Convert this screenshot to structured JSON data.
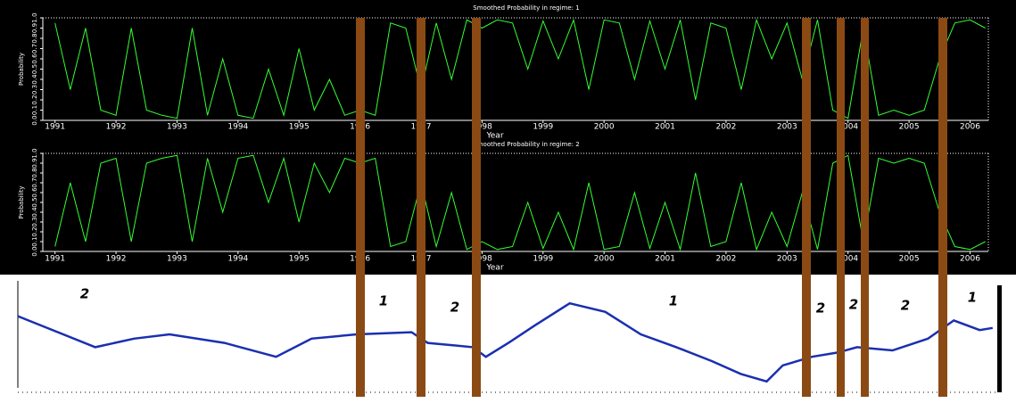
{
  "chart_data": [
    {
      "type": "line",
      "title": "Smoothed Probability in regime: 1",
      "x_label": "Year",
      "y_label": "Probability",
      "xlim": [
        1990.8,
        2006.3
      ],
      "xticks": [
        1991,
        1992,
        1993,
        1994,
        1995,
        1996,
        1997,
        1998,
        1999,
        2000,
        2001,
        2002,
        2003,
        2004,
        2005,
        2006
      ],
      "ylim": [
        0,
        1
      ],
      "yticks": [
        {
          "value": 0,
          "label": "0.0"
        },
        0.1,
        0.2,
        0.3,
        0.4,
        0.5,
        0.6,
        0.7,
        0.8,
        0.9,
        {
          "value": 1,
          "label": "1.0"
        }
      ],
      "background": "#000000",
      "x": [
        1991,
        1991.25,
        1991.5,
        1991.75,
        1992,
        1992.25,
        1992.5,
        1992.75,
        1993,
        1993.25,
        1993.5,
        1993.75,
        1994,
        1994.25,
        1994.5,
        1994.75,
        1995,
        1995.25,
        1995.5,
        1995.75,
        1996,
        1996.25,
        1996.5,
        1996.75,
        1997,
        1997.25,
        1997.5,
        1997.75,
        1998,
        1998.25,
        1998.5,
        1998.75,
        1999,
        1999.25,
        1999.5,
        1999.75,
        2000,
        2000.25,
        2000.5,
        2000.75,
        2001,
        2001.25,
        2001.5,
        2001.75,
        2002,
        2002.25,
        2002.5,
        2002.75,
        2003,
        2003.25,
        2003.5,
        2003.75,
        2004,
        2004.25,
        2004.5,
        2004.75,
        2005,
        2005.25,
        2005.5,
        2005.75,
        2006,
        2006.25
      ],
      "series": [
        {
          "color": "#33ff33",
          "values": [
            0.95,
            0.3,
            0.9,
            0.1,
            0.05,
            0.9,
            0.1,
            0.05,
            0.02,
            0.9,
            0.05,
            0.6,
            0.05,
            0.02,
            0.5,
            0.05,
            0.7,
            0.1,
            0.4,
            0.05,
            0.1,
            0.05,
            0.95,
            0.9,
            0.3,
            0.95,
            0.4,
            0.98,
            0.9,
            0.98,
            0.95,
            0.5,
            0.97,
            0.6,
            0.98,
            0.3,
            0.98,
            0.95,
            0.4,
            0.97,
            0.5,
            0.98,
            0.2,
            0.95,
            0.9,
            0.3,
            0.98,
            0.6,
            0.95,
            0.4,
            0.98,
            0.1,
            0.02,
            0.9,
            0.05,
            0.1,
            0.05,
            0.1,
            0.6,
            0.95,
            0.98,
            0.9
          ]
        }
      ]
    },
    {
      "type": "line",
      "title": "Smoothed Probability in regime: 2",
      "x_label": "Year",
      "y_label": "Probability",
      "xlim": [
        1990.8,
        2006.3
      ],
      "xticks": [
        1991,
        1992,
        1993,
        1994,
        1995,
        1996,
        1997,
        1998,
        1999,
        2000,
        2001,
        2002,
        2003,
        2004,
        2005,
        2006
      ],
      "ylim": [
        0,
        1
      ],
      "yticks": [
        {
          "value": 0,
          "label": "0.0"
        },
        0.1,
        0.2,
        0.3,
        0.4,
        0.5,
        0.6,
        0.7,
        0.8,
        0.9,
        {
          "value": 1,
          "label": "1.0"
        }
      ],
      "background": "#000000",
      "x": [
        1991,
        1991.25,
        1991.5,
        1991.75,
        1992,
        1992.25,
        1992.5,
        1992.75,
        1993,
        1993.25,
        1993.5,
        1993.75,
        1994,
        1994.25,
        1994.5,
        1994.75,
        1995,
        1995.25,
        1995.5,
        1995.75,
        1996,
        1996.25,
        1996.5,
        1996.75,
        1997,
        1997.25,
        1997.5,
        1997.75,
        1998,
        1998.25,
        1998.5,
        1998.75,
        1999,
        1999.25,
        1999.5,
        1999.75,
        2000,
        2000.25,
        2000.5,
        2000.75,
        2001,
        2001.25,
        2001.5,
        2001.75,
        2002,
        2002.25,
        2002.5,
        2002.75,
        2003,
        2003.25,
        2003.5,
        2003.75,
        2004,
        2004.25,
        2004.5,
        2004.75,
        2005,
        2005.25,
        2005.5,
        2005.75,
        2006,
        2006.25
      ],
      "series": [
        {
          "color": "#33ff33",
          "values": [
            0.05,
            0.7,
            0.1,
            0.9,
            0.95,
            0.1,
            0.9,
            0.95,
            0.98,
            0.1,
            0.95,
            0.4,
            0.95,
            0.98,
            0.5,
            0.95,
            0.3,
            0.9,
            0.6,
            0.95,
            0.9,
            0.95,
            0.05,
            0.1,
            0.7,
            0.05,
            0.6,
            0.02,
            0.1,
            0.02,
            0.05,
            0.5,
            0.03,
            0.4,
            0.02,
            0.7,
            0.02,
            0.05,
            0.6,
            0.03,
            0.5,
            0.02,
            0.8,
            0.05,
            0.1,
            0.7,
            0.02,
            0.4,
            0.05,
            0.6,
            0.02,
            0.9,
            0.98,
            0.1,
            0.95,
            0.9,
            0.95,
            0.9,
            0.4,
            0.05,
            0.02,
            0.1
          ]
        }
      ]
    },
    {
      "type": "line",
      "background": "#ffffff",
      "xlim": [
        1991.2,
        2006.4
      ],
      "ylim": [
        0,
        100
      ],
      "x": [
        1991.2,
        1992.4,
        1993.0,
        1993.55,
        1994.4,
        1995.2,
        1995.75,
        1996.45,
        1997.3,
        1997.55,
        1998.25,
        1998.45,
        1998.8,
        1999.2,
        1999.75,
        2000.3,
        2000.85,
        2001.4,
        2001.95,
        2002.4,
        2002.8,
        2003.05,
        2003.5,
        2003.9,
        2004.2,
        2004.75,
        2005.3,
        2005.7,
        2006.1,
        2006.3
      ],
      "series": [
        {
          "color": "#1a2fb0",
          "values": [
            67,
            38,
            46,
            50,
            42,
            29,
            46,
            50,
            52,
            42,
            38,
            29,
            42,
            58,
            79,
            71,
            50,
            38,
            25,
            13,
            6,
            21,
            29,
            33,
            38,
            35,
            46,
            63,
            54,
            56
          ]
        }
      ],
      "annotations": [
        "2",
        "1",
        "2",
        "1",
        "2",
        "2",
        "2",
        "1"
      ]
    }
  ]
}
